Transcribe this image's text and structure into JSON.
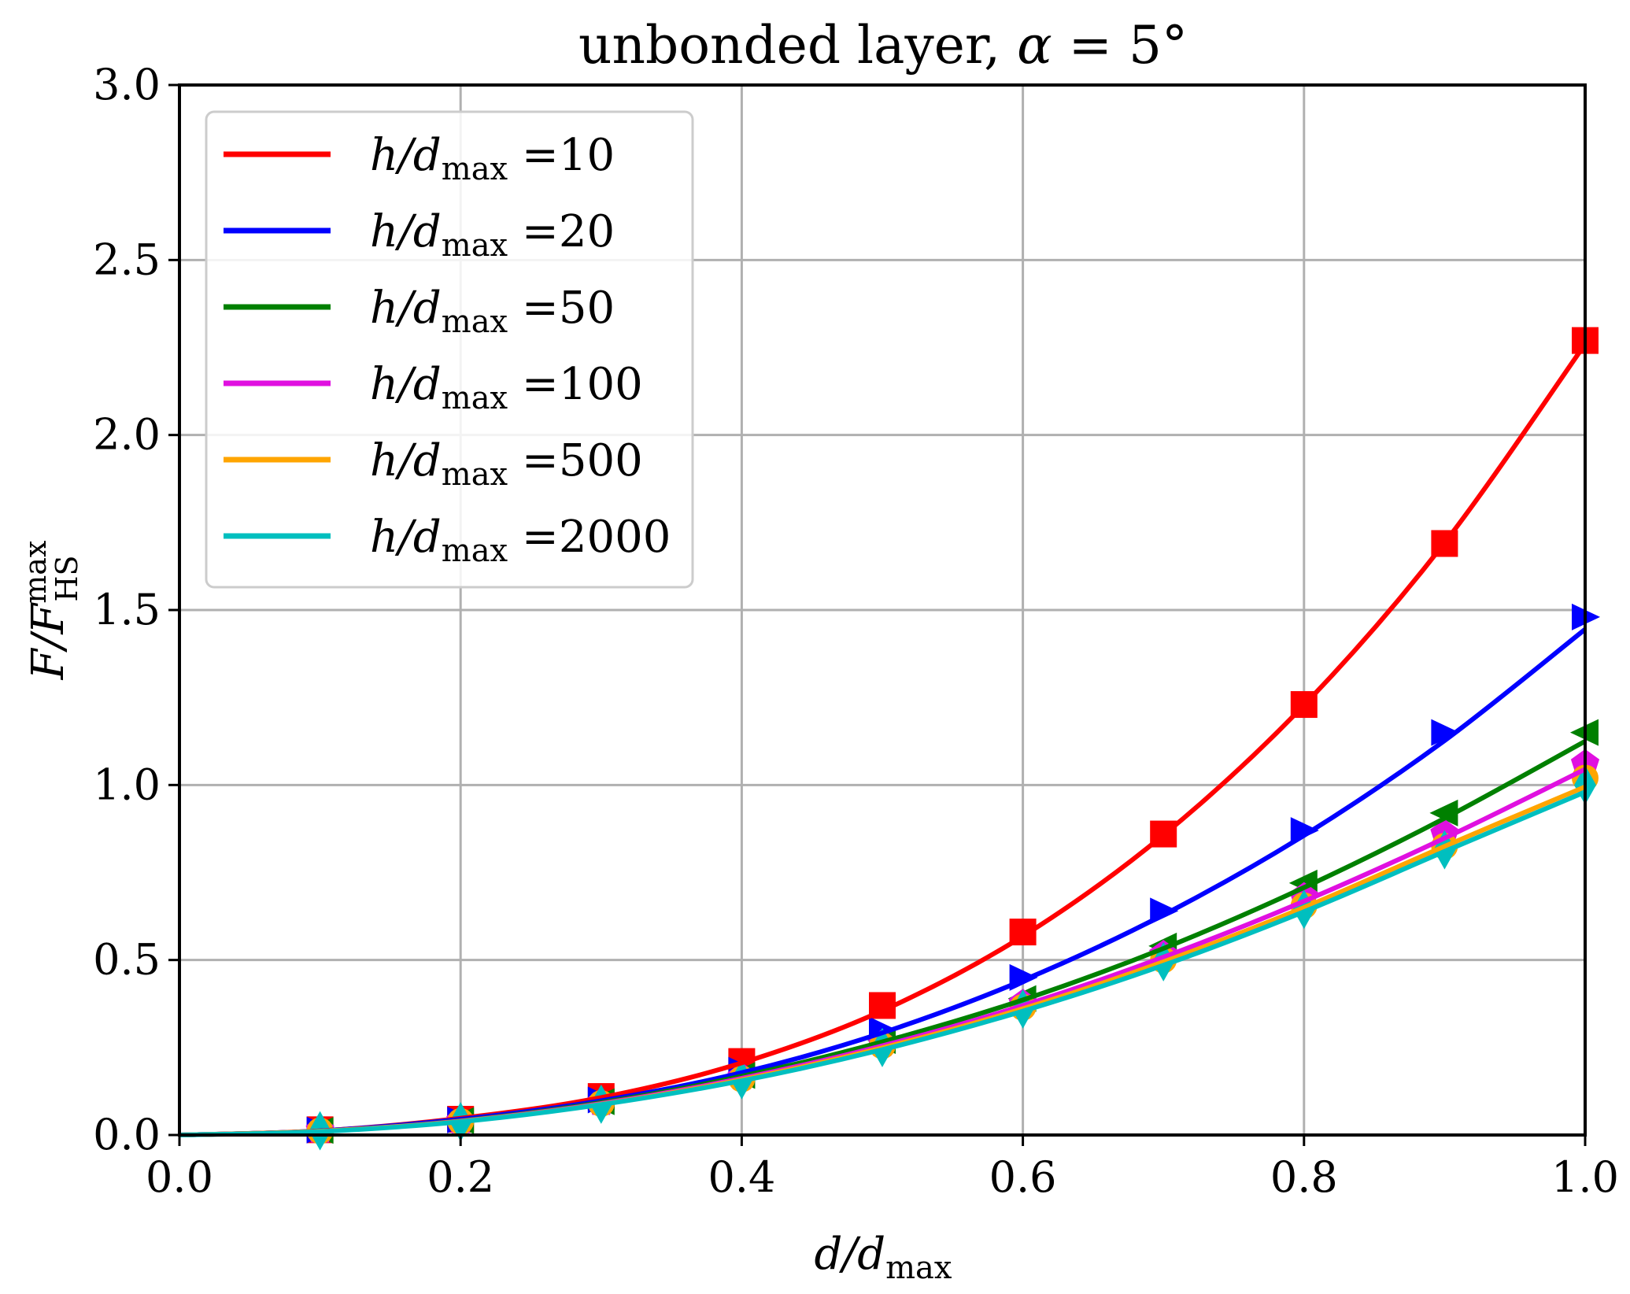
{
  "chart_data": {
    "type": "line",
    "title_prefix": "unbonded layer, ",
    "title_symbol": "α",
    "title_suffix": " = 5°",
    "xlabel": "d/d",
    "xlabel_sub": "max",
    "ylabel": "F/F",
    "ylabel_sup": "max",
    "ylabel_sub": "HS",
    "xlim": [
      0.0,
      1.0
    ],
    "ylim": [
      0.0,
      3.0
    ],
    "xticks": [
      "0.0",
      "0.2",
      "0.4",
      "0.6",
      "0.8",
      "1.0"
    ],
    "yticks": [
      "0.0",
      "0.5",
      "1.0",
      "1.5",
      "2.0",
      "2.5",
      "3.0"
    ],
    "grid": true,
    "legend_position": "upper-left",
    "legend_label_prefix": "h/d",
    "legend_label_sub": "max",
    "legend_label_eq": " =",
    "x": [
      0.1,
      0.2,
      0.3,
      0.4,
      0.5,
      0.6,
      0.7,
      0.8,
      0.9,
      1.0
    ],
    "series": [
      {
        "name": "10",
        "color": "#ff0000",
        "marker": "square",
        "values": [
          0.015,
          0.045,
          0.11,
          0.21,
          0.37,
          0.58,
          0.86,
          1.23,
          1.69,
          2.27
        ],
        "curve": [
          0.0,
          0.012,
          0.048,
          0.107,
          0.206,
          0.355,
          0.568,
          0.857,
          1.228,
          1.692,
          2.26
        ]
      },
      {
        "name": "20",
        "color": "#0000ff",
        "marker": "triangle-right",
        "values": [
          0.014,
          0.043,
          0.1,
          0.185,
          0.3,
          0.45,
          0.64,
          0.87,
          1.15,
          1.48
        ],
        "curve": [
          0.0,
          0.012,
          0.045,
          0.098,
          0.178,
          0.292,
          0.442,
          0.629,
          0.856,
          1.127,
          1.445
        ]
      },
      {
        "name": "50",
        "color": "#008000",
        "marker": "triangle-left",
        "values": [
          0.013,
          0.041,
          0.095,
          0.17,
          0.27,
          0.39,
          0.54,
          0.72,
          0.92,
          1.15
        ],
        "curve": [
          0.0,
          0.011,
          0.041,
          0.093,
          0.168,
          0.266,
          0.386,
          0.533,
          0.707,
          0.905,
          1.125
        ]
      },
      {
        "name": "100",
        "color": "#e010e0",
        "marker": "pentagon",
        "values": [
          0.013,
          0.04,
          0.092,
          0.165,
          0.26,
          0.375,
          0.515,
          0.68,
          0.86,
          1.06
        ],
        "curve": [
          0.0,
          0.011,
          0.04,
          0.09,
          0.162,
          0.255,
          0.37,
          0.508,
          0.668,
          0.848,
          1.045
        ]
      },
      {
        "name": "500",
        "color": "#ffa500",
        "marker": "circle",
        "values": [
          0.012,
          0.039,
          0.09,
          0.16,
          0.255,
          0.365,
          0.5,
          0.655,
          0.825,
          1.02
        ],
        "curve": [
          0.0,
          0.011,
          0.039,
          0.088,
          0.158,
          0.249,
          0.361,
          0.495,
          0.65,
          0.825,
          0.995
        ]
      },
      {
        "name": "2000",
        "color": "#00bfbf",
        "marker": "diamond",
        "values": [
          0.012,
          0.038,
          0.088,
          0.158,
          0.25,
          0.36,
          0.495,
          0.645,
          0.815,
          1.0
        ],
        "curve": [
          0.0,
          0.01,
          0.038,
          0.087,
          0.155,
          0.244,
          0.354,
          0.485,
          0.638,
          0.81,
          0.98
        ]
      }
    ]
  }
}
